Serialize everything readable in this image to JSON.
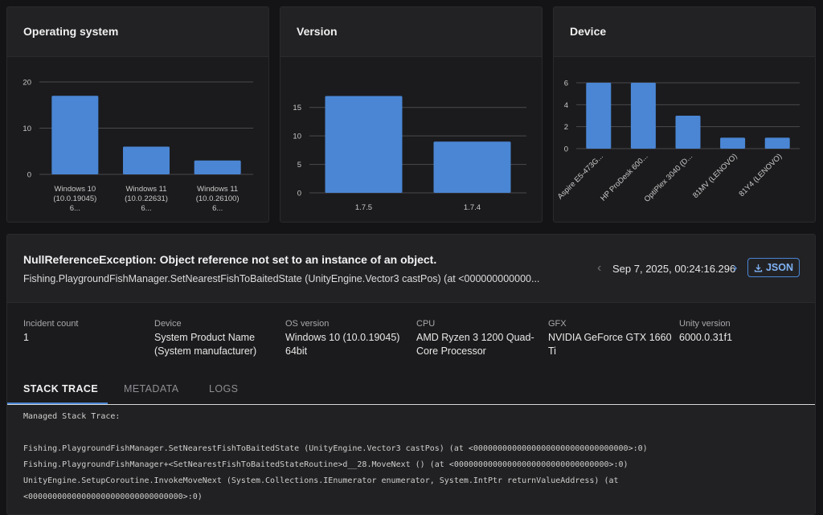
{
  "charts": {
    "os": {
      "title": "Operating system"
    },
    "version": {
      "title": "Version"
    },
    "device": {
      "title": "Device"
    }
  },
  "chart_data": [
    {
      "type": "bar",
      "title": "Operating system",
      "categories": [
        [
          "Windows 10",
          "(10.0.19045)",
          "6..."
        ],
        [
          "Windows 11",
          "(10.0.22631)",
          "6..."
        ],
        [
          "Windows 11",
          "(10.0.26100)",
          "6..."
        ]
      ],
      "values": [
        17,
        6,
        3
      ],
      "ylim": [
        0,
        20
      ],
      "yticks": [
        0,
        10,
        20
      ],
      "grid": true,
      "color": "#4a86d4"
    },
    {
      "type": "bar",
      "title": "Version",
      "categories": [
        "1.7.5",
        "1.7.4"
      ],
      "values": [
        17,
        9
      ],
      "ylim": [
        0,
        17.5
      ],
      "yticks": [
        0,
        5,
        10,
        15
      ],
      "grid": true,
      "color": "#4a86d4"
    },
    {
      "type": "bar",
      "title": "Device",
      "categories": [
        "Aspire E5-473G...",
        "HP ProDesk 600...",
        "OptiPlex 3040 (D...",
        "81MV (LENOVO)",
        "81Y4 (LENOVO)"
      ],
      "values": [
        6,
        6,
        3,
        1,
        1
      ],
      "ylim": [
        0,
        6
      ],
      "yticks": [
        0,
        2,
        4,
        6
      ],
      "grid": true,
      "color": "#4a86d4"
    }
  ],
  "incident": {
    "title": "NullReferenceException: Object reference not set to an instance of an object.",
    "subtitle": "Fishing.PlaygroundFishManager.SetNearestFishToBaitedState (UnityEngine.Vector3 castPos) (at <000000000000...",
    "timestamp": "Sep 7, 2025, 00:24:16.296",
    "json_label": "JSON",
    "prev_icon": "chevron-left-icon",
    "next_icon": "chevron-right-icon",
    "info": [
      {
        "label": "Incident count",
        "value": "1"
      },
      {
        "label": "Device",
        "value": "System Product Name (System manufacturer)"
      },
      {
        "label": "OS version",
        "value": "Windows 10 (10.0.19045) 64bit"
      },
      {
        "label": "CPU",
        "value": "AMD Ryzen 3 1200 Quad-Core Processor"
      },
      {
        "label": "GFX",
        "value": "NVIDIA GeForce GTX 1660 Ti"
      },
      {
        "label": "Unity version",
        "value": "6000.0.31f1"
      }
    ],
    "tabs": [
      "STACK TRACE",
      "METADATA",
      "LOGS"
    ],
    "active_tab": "STACK TRACE",
    "trace": [
      "Managed Stack Trace:",
      "",
      "Fishing.PlaygroundFishManager.SetNearestFishToBaitedState (UnityEngine.Vector3 castPos) (at <00000000000000000000000000000000>:0)",
      "Fishing.PlaygroundFishManager+<SetNearestFishToBaitedStateRoutine>d__28.MoveNext () (at <00000000000000000000000000000000>:0)",
      "UnityEngine.SetupCoroutine.InvokeMoveNext (System.Collections.IEnumerator enumerator, System.IntPtr returnValueAddress) (at",
      "<00000000000000000000000000000000>:0)"
    ]
  },
  "colors": {
    "accent": "#4a86d4",
    "panel": "#1b1b1d",
    "header": "#222225"
  }
}
